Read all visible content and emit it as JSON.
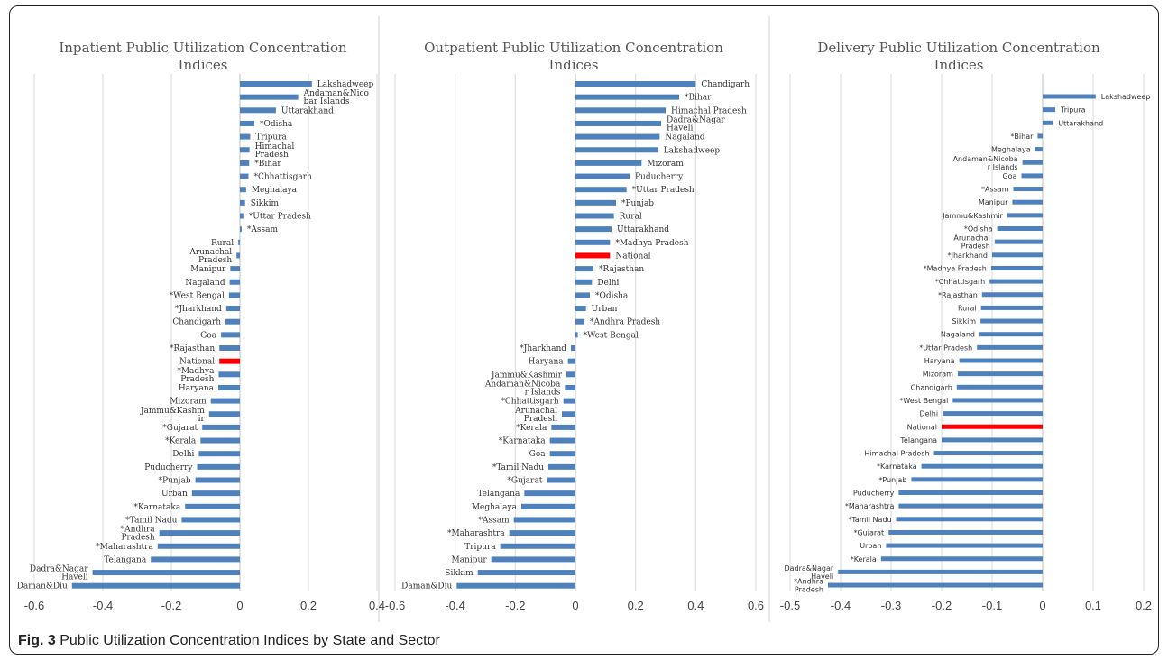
{
  "caption": {
    "fig": "Fig. 3",
    "text": "Public Utilization Concentration Indices by State and Sector"
  },
  "colors": {
    "bar": "#4f81bd",
    "national": "#ff0000",
    "grid": "#d9d9d9",
    "axis": "#bfbfbf"
  },
  "chart_data": [
    {
      "type": "bar",
      "orientation": "horizontal",
      "title": [
        "Inpatient Public Utilization Concentration",
        "Indices"
      ],
      "xlim": [
        -0.6,
        0.4
      ],
      "xticks": [
        "-0.6",
        "-0.4",
        "-0.2",
        "0",
        "0.2",
        "0.4"
      ],
      "xtick_values": [
        -0.6,
        -0.4,
        -0.2,
        0,
        0.2,
        0.4
      ],
      "grid": true,
      "highlight": "National",
      "categories": [
        [
          "Lakshadweep"
        ],
        [
          "Andaman&Nico",
          "bar Islands"
        ],
        [
          "Uttarakhand"
        ],
        [
          "*Odisha"
        ],
        [
          "Tripura"
        ],
        [
          "Himachal",
          "Pradesh"
        ],
        [
          "*Bihar"
        ],
        [
          "*Chhattisgarh"
        ],
        [
          "Meghalaya"
        ],
        [
          "Sikkim"
        ],
        [
          "*Uttar Pradesh"
        ],
        [
          "*Assam"
        ],
        [
          "Rural"
        ],
        [
          "Arunachal",
          "Pradesh"
        ],
        [
          "Manipur"
        ],
        [
          "Nagaland"
        ],
        [
          "*West Bengal"
        ],
        [
          "*Jharkhand"
        ],
        [
          "Chandigarh"
        ],
        [
          "Goa"
        ],
        [
          "*Rajasthan"
        ],
        [
          "National"
        ],
        [
          "*Madhya",
          "Pradesh"
        ],
        [
          "Haryana"
        ],
        [
          "Mizoram"
        ],
        [
          "Jammu&Kashm",
          "ir"
        ],
        [
          "*Gujarat"
        ],
        [
          "*Kerala"
        ],
        [
          "Delhi"
        ],
        [
          "Puducherry"
        ],
        [
          "*Punjab"
        ],
        [
          "Urban"
        ],
        [
          "*Karnataka"
        ],
        [
          "*Tamil Nadu"
        ],
        [
          "*Andhra",
          "Pradesh"
        ],
        [
          "*Maharashtra"
        ],
        [
          "Telangana"
        ],
        [
          "Dadra&Nagar",
          "Haveli"
        ],
        [
          "Daman&Diu"
        ]
      ],
      "values": [
        0.21,
        0.17,
        0.105,
        0.042,
        0.03,
        0.028,
        0.027,
        0.025,
        0.018,
        0.015,
        0.01,
        0.005,
        -0.005,
        -0.01,
        -0.028,
        -0.03,
        -0.032,
        -0.04,
        -0.042,
        -0.055,
        -0.06,
        -0.06,
        -0.062,
        -0.063,
        -0.085,
        -0.09,
        -0.11,
        -0.115,
        -0.12,
        -0.125,
        -0.13,
        -0.14,
        -0.16,
        -0.17,
        -0.235,
        -0.24,
        -0.26,
        -0.43,
        -0.49
      ]
    },
    {
      "type": "bar",
      "orientation": "horizontal",
      "title": [
        "Outpatient Public Utilization Concentration",
        "Indices"
      ],
      "xlim": [
        -0.6,
        0.6
      ],
      "xticks": [
        "-0.6",
        "-0.4",
        "-0.2",
        "0",
        "0.2",
        "0.4",
        "0.6"
      ],
      "xtick_values": [
        -0.6,
        -0.4,
        -0.2,
        0,
        0.2,
        0.4,
        0.6
      ],
      "grid": true,
      "highlight": "National",
      "categories": [
        [
          "Chandigarh"
        ],
        [
          "*Bihar"
        ],
        [
          "Himachal Pradesh"
        ],
        [
          "Dadra&Nagar",
          "Haveli"
        ],
        [
          "Nagaland"
        ],
        [
          "Lakshadweep"
        ],
        [
          "Mizoram"
        ],
        [
          "Puducherry"
        ],
        [
          "*Uttar Pradesh"
        ],
        [
          "*Punjab"
        ],
        [
          "Rural"
        ],
        [
          "Uttarakhand"
        ],
        [
          "*Madhya Pradesh"
        ],
        [
          "National"
        ],
        [
          "*Rajasthan"
        ],
        [
          "Delhi"
        ],
        [
          "*Odisha"
        ],
        [
          "Urban"
        ],
        [
          "*Andhra Pradesh"
        ],
        [
          "*West Bengal"
        ],
        [
          "*Jharkhand"
        ],
        [
          "Haryana"
        ],
        [
          "Jammu&Kashmir"
        ],
        [
          "Andaman&Nicoba",
          "r Islands"
        ],
        [
          "*Chhattisgarh"
        ],
        [
          "Arunachal",
          "Pradesh"
        ],
        [
          "*Kerala"
        ],
        [
          "*Karnataka"
        ],
        [
          "Goa"
        ],
        [
          "*Tamil Nadu"
        ],
        [
          "*Gujarat"
        ],
        [
          "Telangana"
        ],
        [
          "Meghalaya"
        ],
        [
          "*Assam"
        ],
        [
          "*Maharashtra"
        ],
        [
          "Tripura"
        ],
        [
          "Manipur"
        ],
        [
          "Sikkim"
        ],
        [
          "Daman&Diu"
        ]
      ],
      "values": [
        0.4,
        0.345,
        0.3,
        0.285,
        0.28,
        0.275,
        0.22,
        0.18,
        0.17,
        0.135,
        0.128,
        0.12,
        0.115,
        0.115,
        0.06,
        0.055,
        0.048,
        0.035,
        0.03,
        0.008,
        -0.015,
        -0.025,
        -0.03,
        -0.035,
        -0.04,
        -0.045,
        -0.08,
        -0.085,
        -0.085,
        -0.09,
        -0.095,
        -0.17,
        -0.18,
        -0.205,
        -0.22,
        -0.25,
        -0.28,
        -0.325,
        -0.395
      ]
    },
    {
      "type": "bar",
      "orientation": "horizontal",
      "title": [
        "Delivery Public Utilization Concentration",
        "Indices"
      ],
      "xlim": [
        -0.5,
        0.2
      ],
      "xticks": [
        "-0.5",
        "-0.4",
        "-0.3",
        "-0.2",
        "-0.1",
        "0",
        "0.1",
        "0.2"
      ],
      "xtick_values": [
        -0.5,
        -0.4,
        -0.3,
        -0.2,
        -0.1,
        0,
        0.1,
        0.2
      ],
      "grid": true,
      "highlight": "National",
      "categories": [
        [
          "Lakshadweep"
        ],
        [
          "Tripura"
        ],
        [
          "Uttarakhand"
        ],
        [
          "*Bihar"
        ],
        [
          "Meghalaya"
        ],
        [
          "Andaman&Nicoba",
          "r Islands"
        ],
        [
          "Goa"
        ],
        [
          "*Assam"
        ],
        [
          "Manipur"
        ],
        [
          "Jammu&Kashmir"
        ],
        [
          "*Odisha"
        ],
        [
          "Arunachal",
          "Pradesh"
        ],
        [
          "*Jharkhand"
        ],
        [
          "*Madhya Pradesh"
        ],
        [
          "*Chhattisgarh"
        ],
        [
          "*Rajasthan"
        ],
        [
          "Rural"
        ],
        [
          "Sikkim"
        ],
        [
          "Nagaland"
        ],
        [
          "*Uttar Pradesh"
        ],
        [
          "Haryana"
        ],
        [
          "Mizoram"
        ],
        [
          "Chandigarh"
        ],
        [
          "*West Bengal"
        ],
        [
          "Delhi"
        ],
        [
          "National"
        ],
        [
          "Telangana"
        ],
        [
          "Himachal Pradesh"
        ],
        [
          "*Karnataka"
        ],
        [
          "*Punjab"
        ],
        [
          "Puducherry"
        ],
        [
          "*Maharashtra"
        ],
        [
          "*Tamil Nadu"
        ],
        [
          "*Gujarat"
        ],
        [
          "Urban"
        ],
        [
          "*Kerala"
        ],
        [
          "Dadra&Nagar",
          "Haveli"
        ],
        [
          "*Andhra",
          "Pradesh"
        ]
      ],
      "values": [
        0.105,
        0.025,
        0.02,
        -0.01,
        -0.015,
        -0.04,
        -0.042,
        -0.058,
        -0.06,
        -0.07,
        -0.09,
        -0.095,
        -0.1,
        -0.102,
        -0.105,
        -0.12,
        -0.122,
        -0.123,
        -0.125,
        -0.13,
        -0.165,
        -0.168,
        -0.17,
        -0.178,
        -0.198,
        -0.2,
        -0.2,
        -0.215,
        -0.24,
        -0.26,
        -0.285,
        -0.285,
        -0.29,
        -0.305,
        -0.31,
        -0.32,
        -0.405,
        -0.425
      ]
    }
  ]
}
